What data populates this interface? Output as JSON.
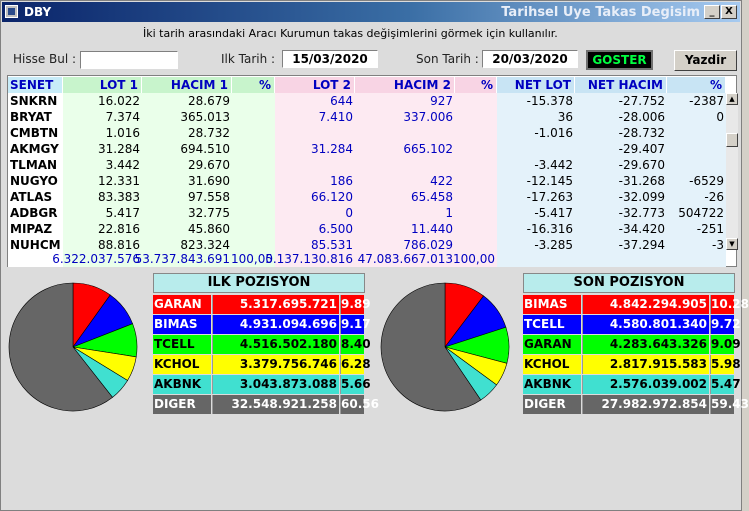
{
  "window": {
    "title": "DBY",
    "subtitle": "Tarihsel Uye Takas Degisim",
    "minimize": "_",
    "close": "X"
  },
  "info_text": "İki tarih arasındaki  Aracı Kurumun takas değişimlerini görmek için kullanılır.",
  "filters": {
    "hisse_label": "Hisse Bul :",
    "hisse_value": "",
    "ilk_label": "Ilk Tarih :",
    "ilk_value": "15/03/2020",
    "son_label": "Son Tarih :",
    "son_value": "20/03/2020",
    "goster": "GOSTER",
    "yazdir": "Yazdir"
  },
  "table": {
    "headers": [
      "SENET",
      "LOT 1",
      "HACIM 1",
      "%",
      "LOT 2",
      "HACIM 2",
      "%",
      "NET LOT",
      "NET HACIM",
      "%"
    ],
    "rows": [
      {
        "senet": "SNKRN",
        "lot1": "16.022",
        "hacim1": "28.679",
        "p1": "",
        "lot2": "644",
        "hacim2": "927",
        "p2": "",
        "netlot": "-15.378",
        "nethacim": "-27.752",
        "p3": "-2387"
      },
      {
        "senet": "BRYAT",
        "lot1": "7.374",
        "hacim1": "365.013",
        "p1": "",
        "lot2": "7.410",
        "hacim2": "337.006",
        "p2": "",
        "netlot": "36",
        "nethacim": "-28.006",
        "p3": "0"
      },
      {
        "senet": "CMBTN",
        "lot1": "1.016",
        "hacim1": "28.732",
        "p1": "",
        "lot2": "",
        "hacim2": "",
        "p2": "",
        "netlot": "-1.016",
        "nethacim": "-28.732",
        "p3": ""
      },
      {
        "senet": "AKMGY",
        "lot1": "31.284",
        "hacim1": "694.510",
        "p1": "",
        "lot2": "31.284",
        "hacim2": "665.102",
        "p2": "",
        "netlot": "",
        "nethacim": "-29.407",
        "p3": ""
      },
      {
        "senet": "TLMAN",
        "lot1": "3.442",
        "hacim1": "29.670",
        "p1": "",
        "lot2": "",
        "hacim2": "",
        "p2": "",
        "netlot": "-3.442",
        "nethacim": "-29.670",
        "p3": ""
      },
      {
        "senet": "NUGYO",
        "lot1": "12.331",
        "hacim1": "31.690",
        "p1": "",
        "lot2": "186",
        "hacim2": "422",
        "p2": "",
        "netlot": "-12.145",
        "nethacim": "-31.268",
        "p3": "-6529"
      },
      {
        "senet": "ATLAS",
        "lot1": "83.383",
        "hacim1": "97.558",
        "p1": "",
        "lot2": "66.120",
        "hacim2": "65.458",
        "p2": "",
        "netlot": "-17.263",
        "nethacim": "-32.099",
        "p3": "-26"
      },
      {
        "senet": "ADBGR",
        "lot1": "5.417",
        "hacim1": "32.775",
        "p1": "",
        "lot2": "0",
        "hacim2": "1",
        "p2": "",
        "netlot": "-5.417",
        "nethacim": "-32.773",
        "p3": "504722"
      },
      {
        "senet": "MIPAZ",
        "lot1": "22.816",
        "hacim1": "45.860",
        "p1": "",
        "lot2": "6.500",
        "hacim2": "11.440",
        "p2": "",
        "netlot": "-16.316",
        "nethacim": "-34.420",
        "p3": "-251"
      },
      {
        "senet": "NUHCM",
        "lot1": "88.816",
        "hacim1": "823.324",
        "p1": "",
        "lot2": "85.531",
        "hacim2": "786.029",
        "p2": "",
        "netlot": "-3.285",
        "nethacim": "-37.294",
        "p3": "-3"
      }
    ],
    "summary": {
      "lot1": "6.322.037.576",
      "hacim1": "53.737.843.691",
      "p1": "100,00",
      "lot2": "5.137.130.816",
      "hacim2": "47.083.667.013",
      "p2": "100,00"
    }
  },
  "ilk_pozisyon": {
    "title": "ILK POZISYON",
    "items": [
      {
        "name": "GARAN",
        "value": "5.317.695.721",
        "pct": "9.89",
        "pct_num": 9.89,
        "bg": "#ff0000",
        "fg": "#ffffff"
      },
      {
        "name": "BIMAS",
        "value": "4.931.094.696",
        "pct": "9.17",
        "pct_num": 9.17,
        "bg": "#0000ff",
        "fg": "#ffffff"
      },
      {
        "name": "TCELL",
        "value": "4.516.502.180",
        "pct": "8.40",
        "pct_num": 8.4,
        "bg": "#00ff00",
        "fg": "#000000"
      },
      {
        "name": "KCHOL",
        "value": "3.379.756.746",
        "pct": "6.28",
        "pct_num": 6.28,
        "bg": "#ffff00",
        "fg": "#000000"
      },
      {
        "name": "AKBNK",
        "value": "3.043.873.088",
        "pct": "5.66",
        "pct_num": 5.66,
        "bg": "#40e0d0",
        "fg": "#000000"
      },
      {
        "name": "DIGER",
        "value": "32.548.921.258",
        "pct": "60.56",
        "pct_num": 60.56,
        "bg": "#666666",
        "fg": "#ffffff"
      }
    ]
  },
  "son_pozisyon": {
    "title": "SON POZISYON",
    "items": [
      {
        "name": "BIMAS",
        "value": "4.842.294.905",
        "pct": "10.28",
        "pct_num": 10.28,
        "bg": "#ff0000",
        "fg": "#ffffff"
      },
      {
        "name": "TCELL",
        "value": "4.580.801.340",
        "pct": "9.72",
        "pct_num": 9.72,
        "bg": "#0000ff",
        "fg": "#ffffff"
      },
      {
        "name": "GARAN",
        "value": "4.283.643.326",
        "pct": "9.09",
        "pct_num": 9.09,
        "bg": "#00ff00",
        "fg": "#000000"
      },
      {
        "name": "KCHOL",
        "value": "2.817.915.583",
        "pct": "5.98",
        "pct_num": 5.98,
        "bg": "#ffff00",
        "fg": "#000000"
      },
      {
        "name": "AKBNK",
        "value": "2.576.039.002",
        "pct": "5.47",
        "pct_num": 5.47,
        "bg": "#40e0d0",
        "fg": "#000000"
      },
      {
        "name": "DIGER",
        "value": "27.982.972.854",
        "pct": "59.43",
        "pct_num": 59.43,
        "bg": "#666666",
        "fg": "#ffffff"
      }
    ]
  }
}
